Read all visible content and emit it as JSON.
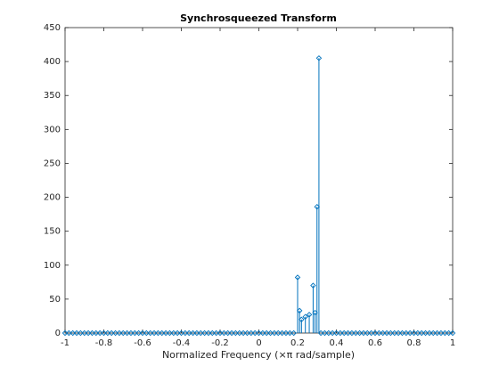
{
  "chart_data": {
    "type": "stem",
    "title": "Synchrosqueezed Transform",
    "x_label": "Normalized Frequency (×π rad/sample)",
    "x": [
      -1,
      -0.98,
      -0.96,
      -0.94,
      -0.92,
      -0.9,
      -0.88,
      -0.86,
      -0.84,
      -0.82,
      -0.8,
      -0.78,
      -0.76,
      -0.74,
      -0.72,
      -0.7,
      -0.68,
      -0.66,
      -0.64,
      -0.62,
      -0.6,
      -0.58,
      -0.56,
      -0.54,
      -0.52,
      -0.5,
      -0.48,
      -0.46,
      -0.44,
      -0.42,
      -0.4,
      -0.38,
      -0.36,
      -0.34,
      -0.32,
      -0.3,
      -0.28,
      -0.26,
      -0.24,
      -0.22,
      -0.2,
      -0.18,
      -0.16,
      -0.14,
      -0.12,
      -0.1,
      -0.08,
      -0.06,
      -0.04,
      -0.02,
      0,
      0.02,
      0.04,
      0.06,
      0.08,
      0.1,
      0.12,
      0.14,
      0.16,
      0.18,
      0.2,
      0.21,
      0.22,
      0.24,
      0.26,
      0.28,
      0.29,
      0.3,
      0.31,
      0.32,
      0.34,
      0.36,
      0.38,
      0.4,
      0.42,
      0.44,
      0.46,
      0.48,
      0.5,
      0.52,
      0.54,
      0.56,
      0.58,
      0.6,
      0.62,
      0.64,
      0.66,
      0.68,
      0.7,
      0.72,
      0.74,
      0.76,
      0.78,
      0.8,
      0.82,
      0.84,
      0.86,
      0.88,
      0.9,
      0.92,
      0.94,
      0.96,
      0.98,
      1
    ],
    "series": [
      {
        "color": "#0072bd",
        "values": [
          0,
          0,
          0,
          0,
          0,
          0,
          0,
          0,
          0,
          0,
          0,
          0,
          0,
          0,
          0,
          0,
          0,
          0,
          0,
          0,
          0,
          0,
          0,
          0,
          0,
          0,
          0,
          0,
          0,
          0,
          0,
          0,
          0,
          0,
          0,
          0,
          0,
          0,
          0,
          0,
          0,
          0,
          0,
          0,
          0,
          0,
          0,
          0,
          0,
          0,
          0,
          0,
          0,
          0,
          0,
          0,
          0,
          0,
          0,
          0,
          82,
          33,
          20,
          24,
          27,
          70,
          30,
          186,
          405,
          0,
          0,
          0,
          0,
          0,
          0,
          0,
          0,
          0,
          0,
          0,
          0,
          0,
          0,
          0,
          0,
          0,
          0,
          0,
          0,
          0,
          0,
          0,
          0,
          0,
          0,
          0,
          0,
          0,
          0,
          0,
          0,
          0,
          0,
          0
        ]
      }
    ],
    "xlim": [
      -1,
      1
    ],
    "xticks": [
      -1,
      -0.8,
      -0.6,
      -0.4,
      -0.2,
      0,
      0.2,
      0.4,
      0.6,
      0.8,
      1
    ],
    "ylim": [
      0,
      450
    ],
    "yticks": [
      0,
      50,
      100,
      150,
      200,
      250,
      300,
      350,
      400,
      450
    ],
    "grid": false
  }
}
